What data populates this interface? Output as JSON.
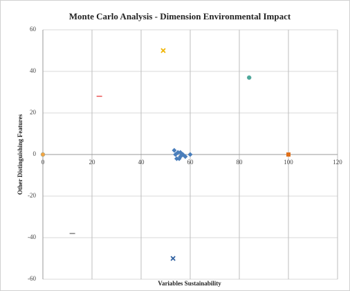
{
  "chart_data": {
    "type": "scatter",
    "title": "Monte Carlo Analysis - Dimension Environmental Impact",
    "x_label": "Variables Sustainability",
    "y_label": "Other Distinguishing Features",
    "xlim": [
      0,
      120
    ],
    "xticks": [
      0,
      20,
      40,
      60,
      80,
      100,
      120
    ],
    "ylim": [
      -60,
      60
    ],
    "yticks": [
      -60,
      -40,
      -20,
      0,
      20,
      40,
      60
    ],
    "grid": true,
    "series": [
      {
        "color": "#4a7ebb",
        "marker": "diamond",
        "x": [
          53.5,
          54,
          55,
          56,
          57,
          55.5,
          58,
          56,
          60,
          54.5
        ],
        "y": [
          2,
          0,
          1,
          -1,
          0,
          -2,
          -1,
          1,
          0,
          -2
        ]
      },
      {
        "color": "#f4a442",
        "marker": "circle",
        "x": [
          0
        ],
        "y": [
          0
        ]
      },
      {
        "color": "#f08080",
        "marker": "dash",
        "x": [
          23
        ],
        "y": [
          28
        ]
      },
      {
        "color": "#f0b400",
        "marker": "x",
        "x": [
          49
        ],
        "y": [
          50
        ]
      },
      {
        "color": "#4aa99a",
        "marker": "circle",
        "x": [
          84
        ],
        "y": [
          37
        ]
      },
      {
        "color": "#e0701a",
        "marker": "square",
        "x": [
          100
        ],
        "y": [
          0
        ]
      },
      {
        "color": "#a0a0a0",
        "marker": "dash",
        "x": [
          12
        ],
        "y": [
          -38
        ]
      },
      {
        "color": "#2e5fa0",
        "marker": "x",
        "x": [
          53
        ],
        "y": [
          -50
        ]
      }
    ]
  }
}
